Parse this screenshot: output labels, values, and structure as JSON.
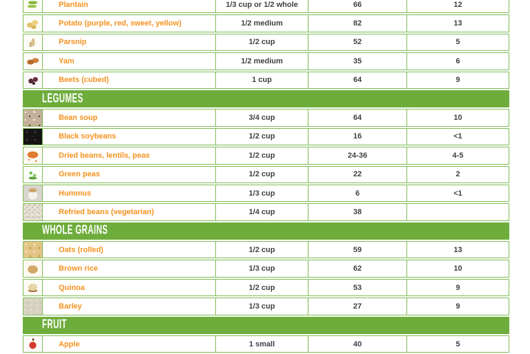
{
  "colors": {
    "band_green": "#6ead3c",
    "border_green": "#7cbb53",
    "food_name_orange": "#f5921e",
    "value_text": "#3f3f41",
    "background": "#ffffff"
  },
  "chart_data": {
    "type": "table",
    "note_visible_columns": [
      "food icon",
      "food name",
      "serving size",
      "value column 1",
      "value column 2"
    ],
    "sections": [
      {
        "header": null,
        "rows": [
          {
            "icon": "plantain",
            "food": "Plantain",
            "serving": "1/3 cup or 1/2 whole",
            "gi": "66",
            "gl": "12"
          },
          {
            "icon": "potato",
            "food": "Potato (purple, red, sweet, yellow)",
            "serving": "1/2 medium",
            "gi": "82",
            "gl": "13"
          },
          {
            "icon": "parsnip",
            "food": "Parsnip",
            "serving": "1/2 cup",
            "gi": "52",
            "gl": "5"
          },
          {
            "icon": "yam",
            "food": "Yam",
            "serving": "1/2 medium",
            "gi": "35",
            "gl": "6"
          },
          {
            "icon": "beets",
            "food": "Beets (cubed)",
            "serving": "1 cup",
            "gi": "64",
            "gl": "9"
          }
        ]
      },
      {
        "header": "LEGUMES",
        "rows": [
          {
            "icon": "bean-soup",
            "food": "Bean soup",
            "serving": "3/4 cup",
            "gi": "64",
            "gl": "10"
          },
          {
            "icon": "black-soybeans",
            "food": "Black soybeans",
            "serving": "1/2 cup",
            "gi": "16",
            "gl": "<1"
          },
          {
            "icon": "dried-beans",
            "food": "Dried beans, lentils, peas",
            "serving": "1/2 cup",
            "gi": "24-36",
            "gl": "4-5"
          },
          {
            "icon": "green-peas",
            "food": "Green peas",
            "serving": "1/2 cup",
            "gi": "22",
            "gl": "2"
          },
          {
            "icon": "hummus",
            "food": "Hummus",
            "serving": "1/3 cup",
            "gi": "6",
            "gl": "<1"
          },
          {
            "icon": "refried-beans",
            "food": "Refried beans (vegetarian)",
            "serving": "1/4 cup",
            "gi": "38",
            "gl": ""
          }
        ]
      },
      {
        "header": "WHOLE GRAINS",
        "rows": [
          {
            "icon": "oats",
            "food": "Oats (rolled)",
            "serving": "1/2 cup",
            "gi": "59",
            "gl": "13"
          },
          {
            "icon": "brown-rice",
            "food": "Brown rice",
            "serving": "1/3 cup",
            "gi": "62",
            "gl": "10"
          },
          {
            "icon": "quinoa",
            "food": "Quinoa",
            "serving": "1/2 cup",
            "gi": "53",
            "gl": "9"
          },
          {
            "icon": "barley",
            "food": "Barley",
            "serving": "1/3 cup",
            "gi": "27",
            "gl": "9"
          }
        ]
      },
      {
        "header": "FRUIT",
        "rows": [
          {
            "icon": "apple",
            "food": "Apple",
            "serving": "1 small",
            "gi": "40",
            "gl": "5"
          }
        ]
      }
    ]
  }
}
